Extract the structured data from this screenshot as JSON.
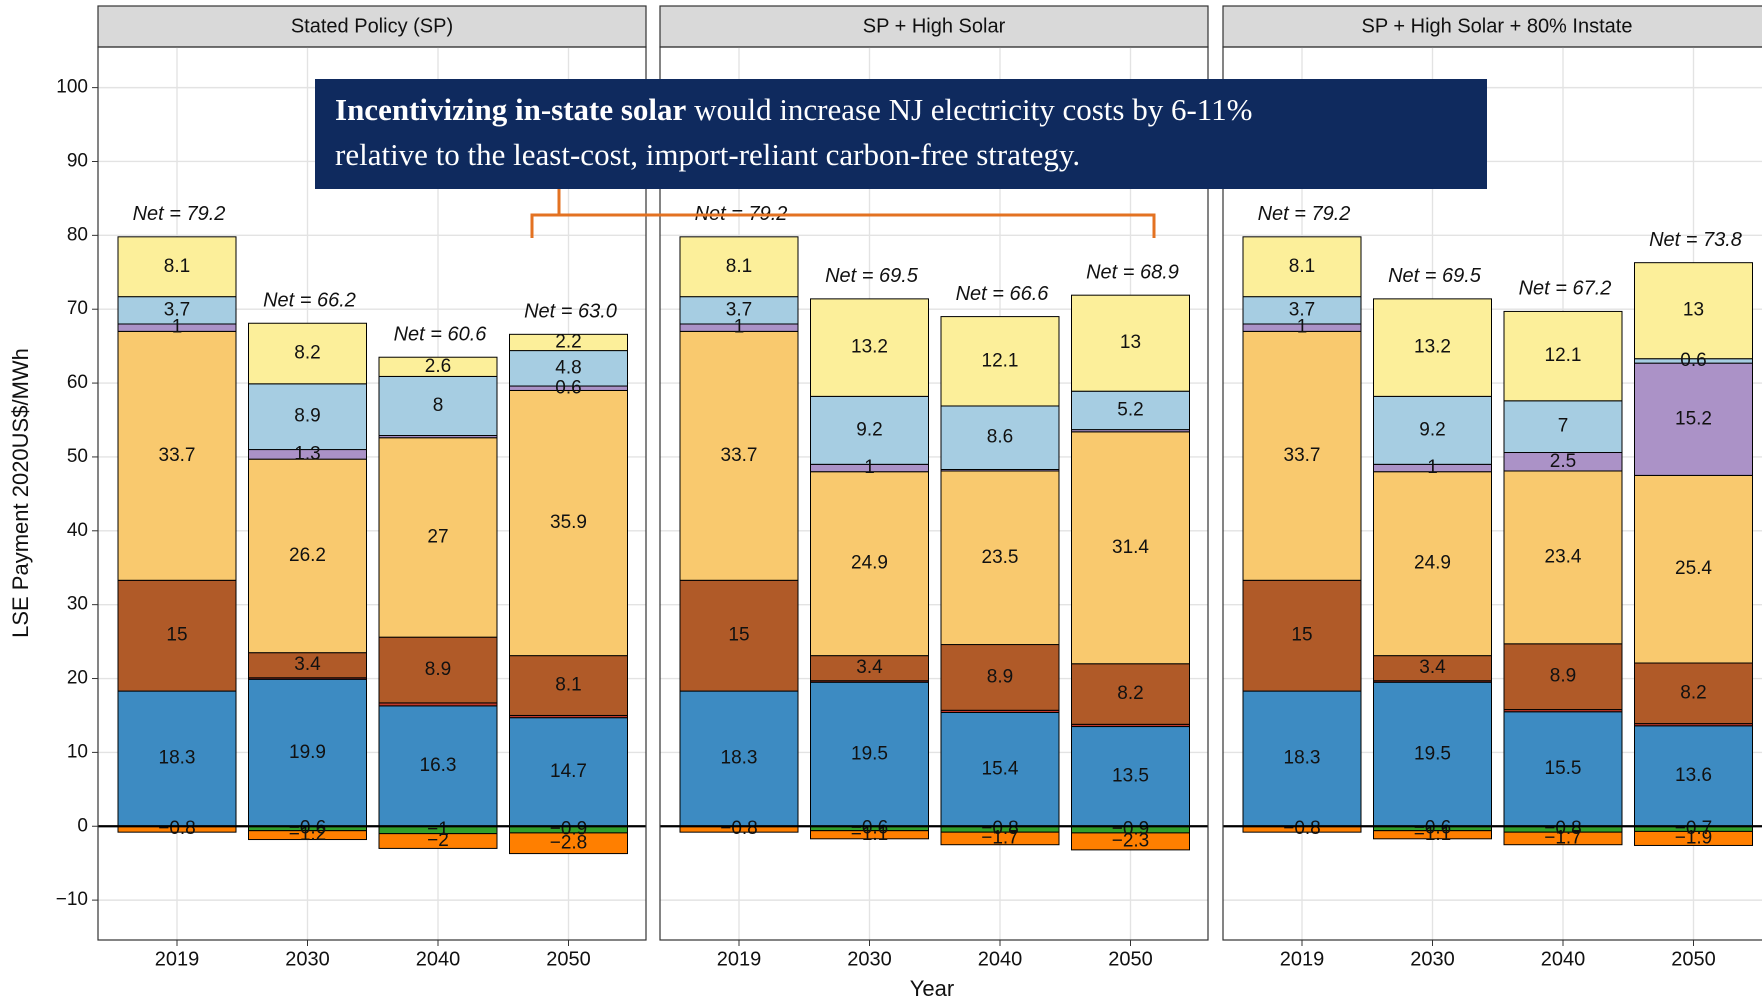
{
  "axis_labels": {
    "y": "LSE Payment 2020US$/MWh",
    "x": "Year"
  },
  "annotation": {
    "bold": "Incentivizing in-state solar",
    "text": " would increase NJ electricity costs by 6-11%",
    "line2": "relative to the least-cost, import-reliant carbon-free strategy."
  },
  "chart_data": [
    {
      "type": "bar",
      "title": "Stated Policy (SP)",
      "categories": [
        "2019",
        "2030",
        "2040",
        "2050"
      ],
      "net_labels": [
        "Net = 79.2",
        "Net = 66.2",
        "Net = 60.6",
        "Net = 63.0"
      ],
      "ylim": [
        -15.4,
        105.5
      ],
      "yticks": [
        {
          "value": -10,
          "label": "−10"
        },
        0,
        10,
        20,
        30,
        40,
        50,
        60,
        70,
        80,
        90,
        100
      ],
      "grid": true,
      "series": [
        {
          "color": "#3d8bc2",
          "values": [
            18.3,
            19.9,
            16.3,
            14.7
          ],
          "value_labels": [
            "18.3",
            "19.9",
            "16.3",
            "14.7"
          ]
        },
        {
          "color": "#c0392b",
          "values": [
            0,
            0.2,
            0.4,
            0.3
          ],
          "value_labels": [
            null,
            null,
            null,
            null
          ]
        },
        {
          "color": "#b05a28",
          "values": [
            15,
            3.4,
            8.9,
            8.1
          ],
          "value_labels": [
            "15",
            "3.4",
            "8.9",
            "8.1"
          ]
        },
        {
          "color": "#f9c96e",
          "values": [
            33.7,
            26.2,
            27,
            35.9
          ],
          "value_labels": [
            "33.7",
            "26.2",
            "27",
            "35.9"
          ]
        },
        {
          "color": "#ab92c7",
          "values": [
            1,
            1.3,
            0.3,
            0.6
          ],
          "value_labels": [
            "1",
            "1.3",
            null,
            "0.6"
          ]
        },
        {
          "color": "#a6cde2",
          "values": [
            3.7,
            8.9,
            8,
            4.8
          ],
          "value_labels": [
            "3.7",
            "8.9",
            "8",
            "4.8"
          ]
        },
        {
          "color": "#fcef9a",
          "values": [
            8.1,
            8.2,
            2.6,
            2.2
          ],
          "value_labels": [
            "8.1",
            "8.2",
            "2.6",
            "2.2"
          ]
        },
        {
          "color": "#33a02c",
          "values": [
            0,
            -0.6,
            -1,
            -0.9
          ],
          "value_labels": [
            null,
            "−0.6",
            "−1",
            "−0.9"
          ]
        },
        {
          "color": "#ff7f00",
          "values": [
            -0.8,
            -1.2,
            -2,
            -2.8
          ],
          "value_labels": [
            "−0.8",
            "−1.2",
            "−2",
            "−2.8"
          ]
        }
      ]
    },
    {
      "type": "bar",
      "title": "SP + High Solar",
      "categories": [
        "2019",
        "2030",
        "2040",
        "2050"
      ],
      "net_labels": [
        "Net = 79.2",
        "Net = 69.5",
        "Net = 66.6",
        "Net = 68.9"
      ],
      "ylim": [
        -15.4,
        105.5
      ],
      "yticks": [
        -10,
        0,
        10,
        20,
        30,
        40,
        50,
        60,
        70,
        80,
        90,
        100
      ],
      "grid": true,
      "series": [
        {
          "color": "#3d8bc2",
          "values": [
            18.3,
            19.5,
            15.4,
            13.5
          ],
          "value_labels": [
            "18.3",
            "19.5",
            "15.4",
            "13.5"
          ]
        },
        {
          "color": "#c0392b",
          "values": [
            0,
            0.2,
            0.3,
            0.3
          ],
          "value_labels": [
            null,
            null,
            null,
            null
          ]
        },
        {
          "color": "#b05a28",
          "values": [
            15,
            3.4,
            8.9,
            8.2
          ],
          "value_labels": [
            "15",
            "3.4",
            "8.9",
            "8.2"
          ]
        },
        {
          "color": "#f9c96e",
          "values": [
            33.7,
            24.9,
            23.5,
            31.4
          ],
          "value_labels": [
            "33.7",
            "24.9",
            "23.5",
            "31.4"
          ]
        },
        {
          "color": "#ab92c7",
          "values": [
            1,
            1,
            0.2,
            0.3
          ],
          "value_labels": [
            "1",
            "1",
            null,
            null
          ]
        },
        {
          "color": "#a6cde2",
          "values": [
            3.7,
            9.2,
            8.6,
            5.2
          ],
          "value_labels": [
            "3.7",
            "9.2",
            "8.6",
            "5.2"
          ]
        },
        {
          "color": "#fcef9a",
          "values": [
            8.1,
            13.2,
            12.1,
            13
          ],
          "value_labels": [
            "8.1",
            "13.2",
            "12.1",
            "13"
          ]
        },
        {
          "color": "#33a02c",
          "values": [
            0,
            -0.6,
            -0.8,
            -0.9
          ],
          "value_labels": [
            null,
            "−0.6",
            "−0.8",
            "−0.9"
          ]
        },
        {
          "color": "#ff7f00",
          "values": [
            -0.8,
            -1.1,
            -1.7,
            -2.3
          ],
          "value_labels": [
            "−0.8",
            "−1.1",
            "−1.7",
            "−2.3"
          ]
        }
      ]
    },
    {
      "type": "bar",
      "title": "SP + High Solar + 80% Instate",
      "categories": [
        "2019",
        "2030",
        "2040",
        "2050"
      ],
      "net_labels": [
        "Net = 79.2",
        "Net = 69.5",
        "Net = 67.2",
        "Net = 73.8"
      ],
      "ylim": [
        -15.4,
        105.5
      ],
      "yticks": [
        -10,
        0,
        10,
        20,
        30,
        40,
        50,
        60,
        70,
        80,
        90,
        100
      ],
      "grid": true,
      "series": [
        {
          "color": "#3d8bc2",
          "values": [
            18.3,
            19.5,
            15.5,
            13.6
          ],
          "value_labels": [
            "18.3",
            "19.5",
            "15.5",
            "13.6"
          ]
        },
        {
          "color": "#c0392b",
          "values": [
            0,
            0.2,
            0.3,
            0.3
          ],
          "value_labels": [
            null,
            null,
            null,
            null
          ]
        },
        {
          "color": "#b05a28",
          "values": [
            15,
            3.4,
            8.9,
            8.2
          ],
          "value_labels": [
            "15",
            "3.4",
            "8.9",
            "8.2"
          ]
        },
        {
          "color": "#f9c96e",
          "values": [
            33.7,
            24.9,
            23.4,
            25.4
          ],
          "value_labels": [
            "33.7",
            "24.9",
            "23.4",
            "25.4"
          ]
        },
        {
          "color": "#ab92c7",
          "values": [
            1,
            1,
            2.5,
            15.2
          ],
          "value_labels": [
            "1",
            "1",
            "2.5",
            "15.2"
          ]
        },
        {
          "color": "#a6cde2",
          "values": [
            3.7,
            9.2,
            7,
            0.6
          ],
          "value_labels": [
            "3.7",
            "9.2",
            "7",
            "0.6"
          ]
        },
        {
          "color": "#fcef9a",
          "values": [
            8.1,
            13.2,
            12.1,
            13
          ],
          "value_labels": [
            "8.1",
            "13.2",
            "12.1",
            "13"
          ]
        },
        {
          "color": "#33a02c",
          "values": [
            0,
            -0.6,
            -0.8,
            -0.7
          ],
          "value_labels": [
            null,
            "−0.6",
            "−0.8",
            "−0.7"
          ]
        },
        {
          "color": "#ff7f00",
          "values": [
            -0.8,
            -1.1,
            -1.7,
            -1.9
          ],
          "value_labels": [
            "−0.8",
            "−1.1",
            "−1.7",
            "−1.9"
          ]
        }
      ]
    }
  ]
}
